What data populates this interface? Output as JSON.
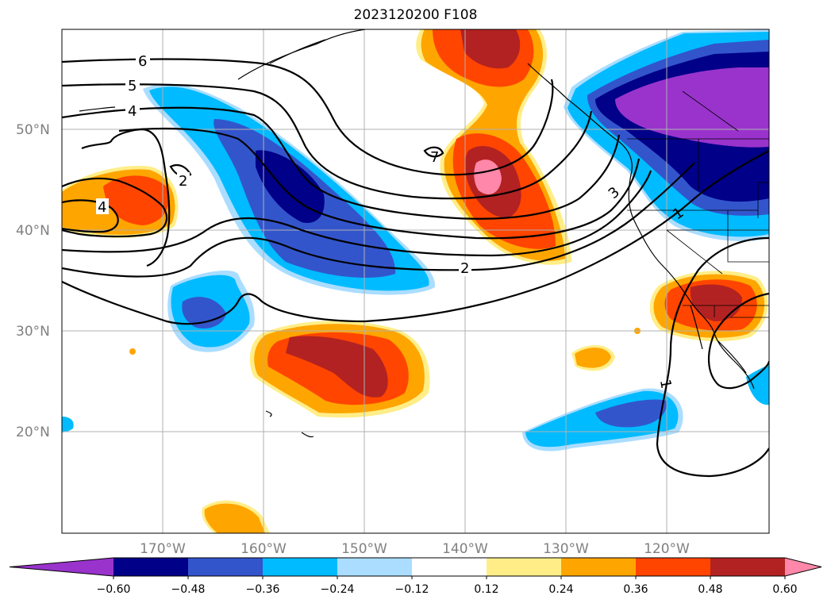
{
  "title": "2023120200 F108",
  "colors": {
    "neg_extend": "#9933cc",
    "neg_060": "#000088",
    "neg_048": "#3355cc",
    "neg_036": "#00bbff",
    "neg_024": "#aaddff",
    "pos_012": "#ffee88",
    "pos_024": "#ffa500",
    "pos_036": "#ff4500",
    "pos_048": "#b22222",
    "pos_extend": "#ff88aa"
  },
  "lat_labels": [
    "50°N",
    "40°N",
    "30°N",
    "20°N"
  ],
  "lon_labels": [
    "170°W",
    "160°W",
    "150°W",
    "140°W",
    "130°W",
    "120°W"
  ],
  "colorbar": {
    "ticks": [
      "−0.60",
      "−0.48",
      "−0.36",
      "−0.24",
      "−0.12",
      "0.12",
      "0.24",
      "0.36",
      "0.48",
      "0.60"
    ],
    "colors": [
      "#9933cc",
      "#000088",
      "#3355cc",
      "#00bbff",
      "#aaddff",
      "#ffffff",
      "#ffee88",
      "#ffa500",
      "#ff4500",
      "#b22222",
      "#ff88aa"
    ]
  },
  "contour_labels": [
    "6",
    "5",
    "4",
    "2",
    "4",
    "7",
    "3",
    "1",
    "2",
    "1"
  ]
}
